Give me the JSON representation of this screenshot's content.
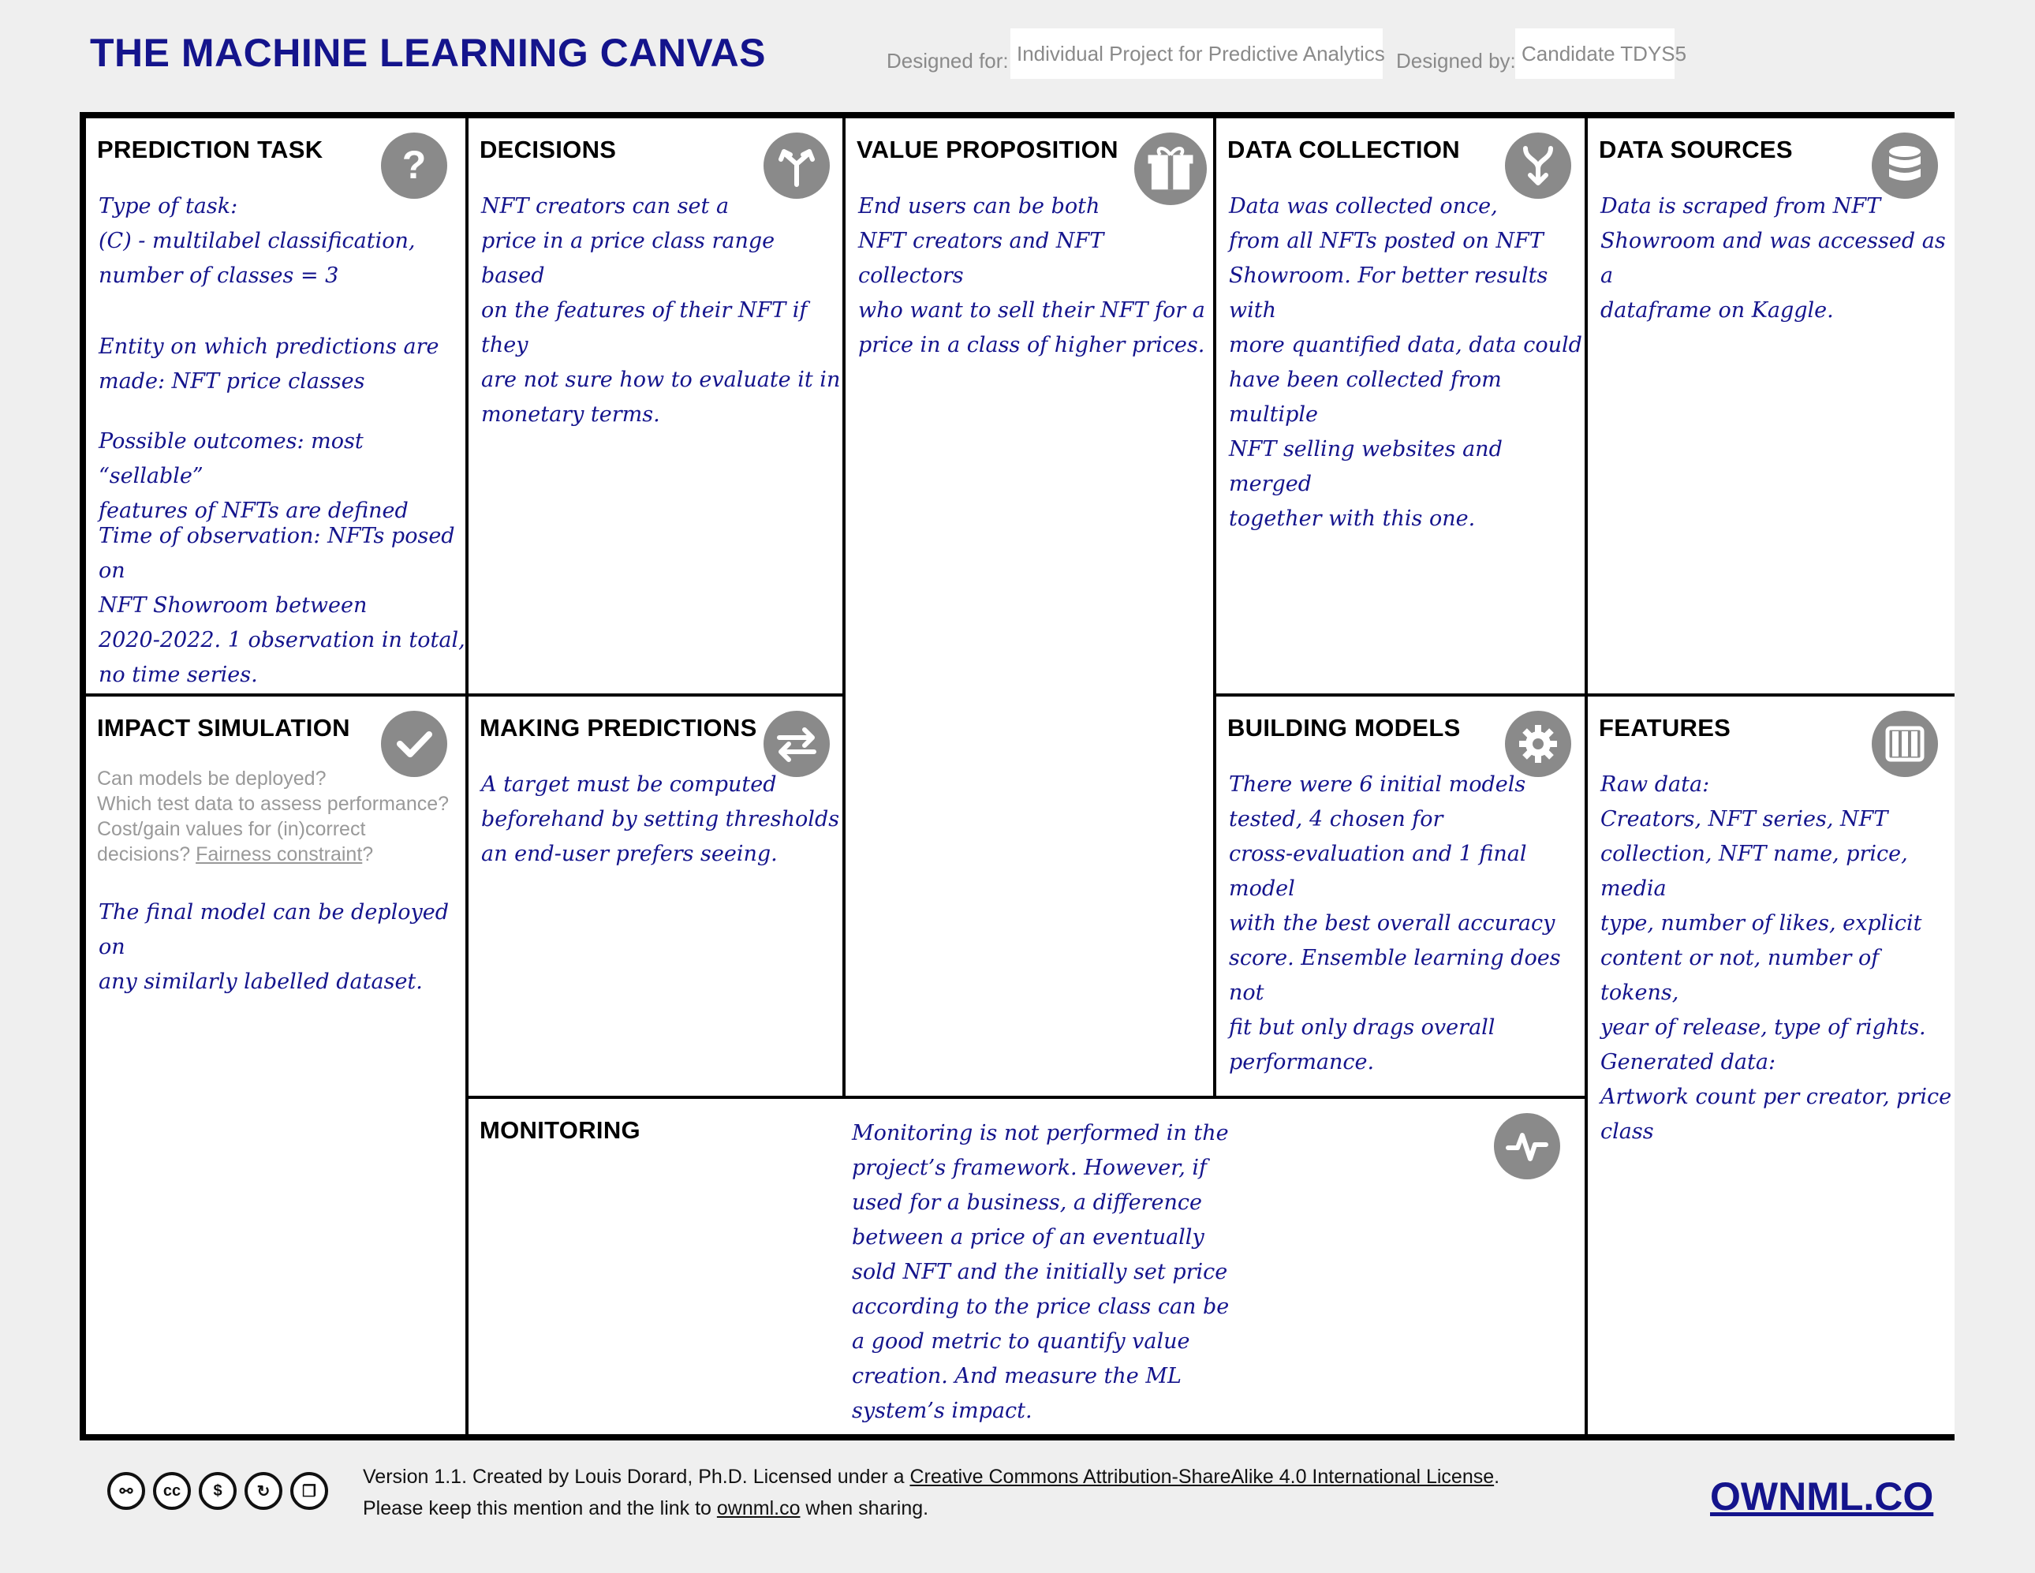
{
  "header": {
    "title": "THE MACHINE LEARNING CANVAS",
    "designed_for_label": "Designed for:",
    "designed_for_value": "Individual Project for Predictive Analytics",
    "designed_by_label": "Designed by:",
    "designed_by_value": "Candidate TDYS5"
  },
  "cells": {
    "prediction_task": {
      "title": "PREDICTION TASK",
      "icon": "question-icon",
      "text1": "Type of task:\n(C) - multilabel classification,\nnumber of classes = 3",
      "text2": "Entity on which predictions are\nmade: NFT price classes",
      "text3": "Possible outcomes: most “sellable”\nfeatures of NFTs are defined",
      "text4": "Time of observation: NFTs posed on\nNFT Showroom between\n2020-2022. 1 observation in total,\nno time series."
    },
    "decisions": {
      "title": "DECISIONS",
      "icon": "fork-arrows-icon",
      "text": "NFT creators can set a\nprice in a price class range based\non the features of their NFT if they\nare not sure how to evaluate it in\nmonetary terms."
    },
    "value_proposition": {
      "title": "VALUE PROPOSITION",
      "icon": "gift-icon",
      "text": "End users can be both\nNFT creators and NFT collectors\nwho want to sell their NFT for a\nprice in a class of higher prices."
    },
    "data_collection": {
      "title": "DATA COLLECTION",
      "icon": "merge-arrows-icon",
      "text": "Data was collected once,\nfrom all NFTs posted on NFT\nShowroom. For better results with\nmore quantified data, data could\nhave been collected from multiple\nNFT selling websites and merged\ntogether with this one."
    },
    "data_sources": {
      "title": "DATA SOURCES",
      "icon": "database-icon",
      "text": "Data is scraped from NFT\nShowroom and was accessed as a\ndataframe on Kaggle."
    },
    "impact_simulation": {
      "title": "IMPACT SIMULATION",
      "icon": "checkmark-icon",
      "hint_pre": "Can models be deployed?\nWhich test data to assess performance?\nCost/gain values for (in)correct\ndecisions? ",
      "hint_link": "Fairness constraint",
      "hint_post": "?",
      "text": "The final model can be deployed on\nany similarly labelled dataset."
    },
    "making_predictions": {
      "title": "MAKING PREDICTIONS",
      "icon": "swap-arrows-icon",
      "text": "A target must be computed\nbeforehand by setting thresholds\nan end-user prefers seeing."
    },
    "building_models": {
      "title": "BUILDING MODELS",
      "icon": "gear-icon",
      "text": "There were 6 initial models\ntested, 4 chosen for\ncross-evaluation and 1 final model\nwith the best overall accuracy\nscore. Ensemble learning does not\nfit but only drags overall\nperformance."
    },
    "features": {
      "title": "FEATURES",
      "icon": "columns-icon",
      "text": "Raw data:\nCreators, NFT series, NFT\ncollection, NFT name, price, media\ntype, number of likes, explicit\ncontent or not, number of tokens,\nyear of release, type of rights.\nGenerated data:\nArtwork count per creator, price\nclass"
    },
    "monitoring": {
      "title": "MONITORING",
      "icon": "pulse-icon",
      "text": "Monitoring is not performed in the\nproject’s framework. However, if\nused for a business, a difference\nbetween a price of an eventually\nsold NFT and the initially set price\naccording to the price class can be\na good metric to quantify value\ncreation. And measure the ML\nsystem’s impact."
    }
  },
  "footer": {
    "line1_pre": "Version 1.1. Created by Louis Dorard, Ph.D. Licensed under a ",
    "line1_link": "Creative Commons Attribution-ShareAlike 4.0 International License",
    "line1_post": ".",
    "line2_pre": "Please keep this mention and the link to ",
    "line2_link": "ownml.co",
    "line2_post": " when sharing.",
    "brand": "OWNML.CO",
    "cc_icons": [
      "attribution-icon",
      "cc-icon",
      "noncommercial-icon",
      "sharealike-icon",
      "copy-icon"
    ]
  },
  "colors": {
    "ink_blue": "#14148c",
    "icon_grey": "#8a8a8a",
    "hint_grey": "#999999",
    "background": "#efefef"
  }
}
